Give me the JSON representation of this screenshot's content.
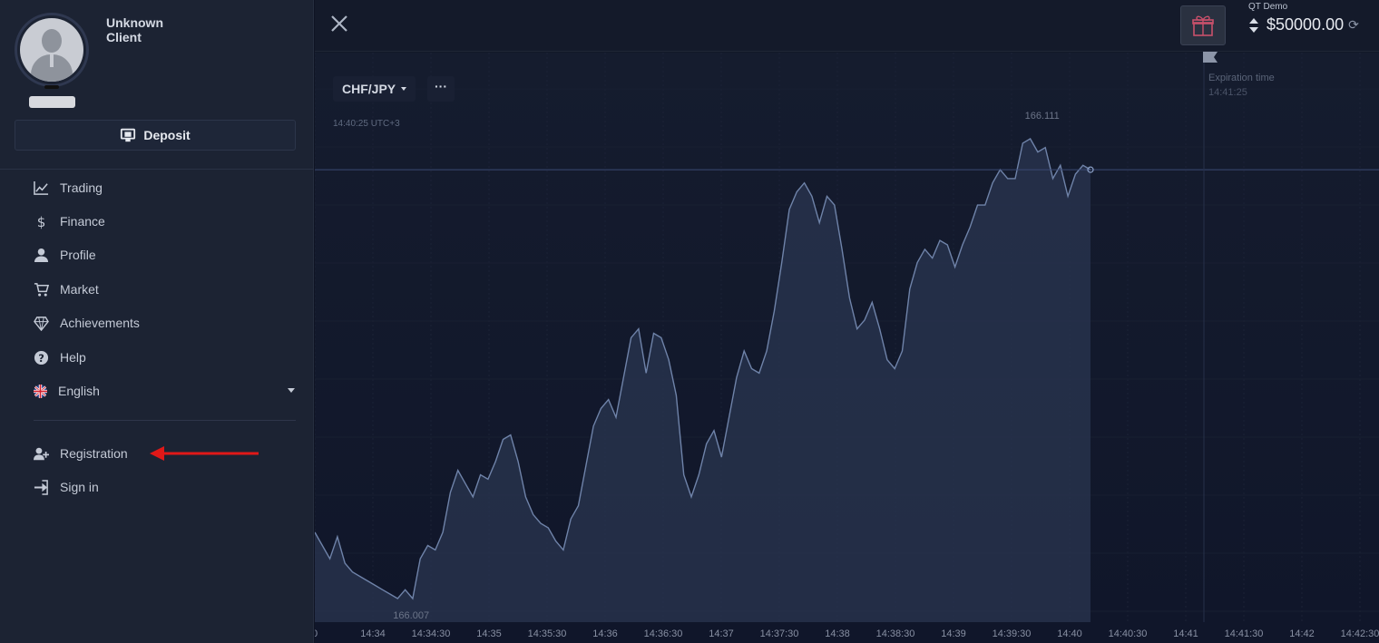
{
  "sidebar": {
    "client_name": "Unknown Client",
    "deposit_label": "Deposit",
    "items": [
      {
        "label": "Trading",
        "icon": "chart-line-icon"
      },
      {
        "label": "Finance",
        "icon": "dollar-icon"
      },
      {
        "label": "Profile",
        "icon": "user-icon"
      },
      {
        "label": "Market",
        "icon": "cart-icon"
      },
      {
        "label": "Achievements",
        "icon": "diamond-icon"
      },
      {
        "label": "Help",
        "icon": "help-icon"
      },
      {
        "label": "English",
        "icon": "uk-flag-icon"
      }
    ],
    "auth": [
      {
        "label": "Registration",
        "icon": "user-plus-icon"
      },
      {
        "label": "Sign in",
        "icon": "sign-in-icon"
      }
    ]
  },
  "topbar": {
    "account_label": "QT Demo",
    "balance": "$50000.00"
  },
  "chart": {
    "pair": "CHF/JPY",
    "more": "···",
    "current_time": "14:40:25 UTC+3",
    "expiration_label": "Expiration time",
    "expiration_time": "14:41:25"
  },
  "chart_data": {
    "type": "area",
    "title": "",
    "x_ticks": [
      "0",
      "14:34",
      "14:34:30",
      "14:35",
      "14:35:30",
      "14:36",
      "14:36:30",
      "14:37",
      "14:37:30",
      "14:38",
      "14:38:30",
      "14:39",
      "14:39:30",
      "14:40",
      "14:40:30",
      "14:41",
      "14:41:30",
      "14:42",
      "14:42:30"
    ],
    "max_label": "166.111",
    "min_label": "166.007",
    "y_range": [
      166.007,
      166.111
    ],
    "series": [
      {
        "values": [
          166.022,
          166.019,
          166.016,
          166.021,
          166.015,
          166.013,
          166.012,
          166.011,
          166.01,
          166.009,
          166.008,
          166.007,
          166.009,
          166.007,
          166.016,
          166.019,
          166.018,
          166.022,
          166.031,
          166.036,
          166.033,
          166.03,
          166.035,
          166.034,
          166.038,
          166.043,
          166.044,
          166.038,
          166.03,
          166.026,
          166.024,
          166.023,
          166.02,
          166.018,
          166.025,
          166.028,
          166.037,
          166.046,
          166.05,
          166.052,
          166.048,
          166.057,
          166.066,
          166.068,
          166.058,
          166.067,
          166.066,
          166.061,
          166.053,
          166.035,
          166.03,
          166.035,
          166.042,
          166.045,
          166.039,
          166.048,
          166.057,
          166.063,
          166.059,
          166.058,
          166.063,
          166.072,
          166.083,
          166.095,
          166.099,
          166.101,
          166.098,
          166.092,
          166.098,
          166.096,
          166.086,
          166.075,
          166.068,
          166.07,
          166.074,
          166.068,
          166.061,
          166.059,
          166.063,
          166.077,
          166.083,
          166.086,
          166.084,
          166.088,
          166.087,
          166.082,
          166.087,
          166.091,
          166.096,
          166.096,
          166.101,
          166.104,
          166.102,
          166.102,
          166.11,
          166.111,
          166.108,
          166.109,
          166.102,
          166.105,
          166.098,
          166.103,
          166.105,
          166.104
        ]
      }
    ],
    "colors": {
      "line": "#6f83a9",
      "area": "#2a3650",
      "current_line": "#3a4a73"
    }
  }
}
